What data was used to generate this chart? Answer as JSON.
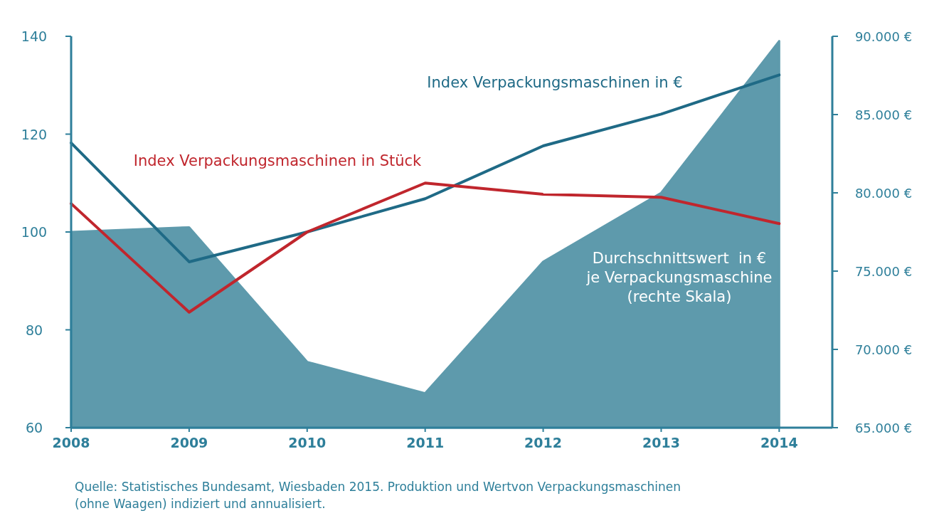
{
  "chart_data": {
    "type": "line",
    "x": [
      2008,
      2009,
      2010,
      2011,
      2012,
      2013,
      2014
    ],
    "xlim": [
      2008,
      2014.45
    ],
    "xticks": [
      2008,
      2009,
      2010,
      2011,
      2012,
      2013,
      2014
    ],
    "ylim": [
      60,
      140
    ],
    "yticks": [
      60,
      80,
      100,
      120,
      140
    ],
    "y2lim": [
      65000,
      90000
    ],
    "y2ticks": [
      {
        "value": 65000,
        "label": "65.000 €"
      },
      {
        "value": 70000,
        "label": "70.000 €"
      },
      {
        "value": 75000,
        "label": "75.000 €"
      },
      {
        "value": 80000,
        "label": "80.000 €"
      },
      {
        "value": 85000,
        "label": "85.000 €"
      },
      {
        "value": 90000,
        "label": "90.000 €"
      }
    ],
    "series": [
      {
        "name": "Durchschnittswert  in € je Verpackungsmaschine (rechte Skala)",
        "type": "area",
        "axis": "y2",
        "color": "#5e9aac",
        "values": [
          77500,
          77800,
          69200,
          67200,
          75600,
          80000,
          89700
        ]
      },
      {
        "name": "Index Verpackungsmaschinen in €",
        "type": "line",
        "color": "#1f6a86",
        "values": [
          118.2,
          93.9,
          100,
          106.8,
          117.6,
          124.1,
          132.1
        ]
      },
      {
        "name": "Index Verpackungsmaschinen in Stück",
        "type": "line",
        "color": "#c0262d",
        "values": [
          105.8,
          83.6,
          100,
          110,
          107.7,
          107.1,
          101.7
        ]
      }
    ],
    "grid": false,
    "legend": false,
    "annotations": [
      "Quelle: Statistisches Bundesamt, Wiesbaden 2015. Produktion und Wertvon Verpackungsmaschinen (ohne Waagen) indiziert und annualisiert."
    ]
  }
}
